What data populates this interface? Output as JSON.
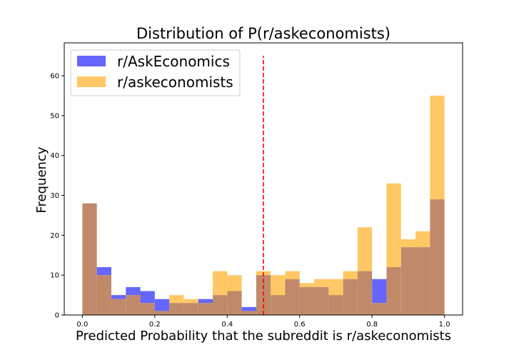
{
  "chart_data": {
    "type": "histogram",
    "title": "Distribution of P(r/askeconomists)",
    "xlabel": "Predicted Probability that the subreddit is r/askeconomists",
    "ylabel": "Frequency",
    "xlim": [
      -0.05,
      1.05
    ],
    "ylim": [
      0,
      68.25
    ],
    "xticks": [
      "0.0",
      "0.2",
      "0.4",
      "0.6",
      "0.8",
      "1.0"
    ],
    "yticks": [
      "0",
      "10",
      "20",
      "30",
      "40",
      "50",
      "60"
    ],
    "bin_edges": [
      0.0,
      0.04,
      0.08,
      0.12,
      0.16,
      0.2,
      0.24,
      0.28,
      0.32,
      0.36,
      0.4,
      0.44,
      0.48,
      0.52,
      0.56,
      0.6,
      0.64,
      0.68,
      0.72,
      0.76,
      0.8,
      0.84,
      0.88,
      0.92,
      0.96,
      1.0
    ],
    "grid": false,
    "legend_position": "top-left",
    "threshold_line": {
      "x": 0.5,
      "y_range": [
        0,
        65
      ],
      "color": "#ff0000",
      "style": "dashed"
    },
    "series": [
      {
        "name": "r/AskEconomics",
        "color": "#6666ff",
        "values": [
          28,
          12,
          5,
          7,
          6,
          4,
          3,
          3,
          4,
          5,
          6,
          2,
          10,
          5,
          9,
          7,
          7,
          5,
          9,
          11,
          9,
          12,
          17,
          17,
          29
        ]
      },
      {
        "name": "r/askeconomists",
        "color": "#ffc864",
        "values": [
          28,
          10,
          4,
          5,
          3,
          1,
          5,
          4,
          3,
          11,
          10,
          1,
          11,
          10,
          11,
          8,
          9,
          9,
          11,
          22,
          3,
          33,
          19,
          21,
          55
        ]
      }
    ],
    "overlap_color": "#c08a6a"
  }
}
